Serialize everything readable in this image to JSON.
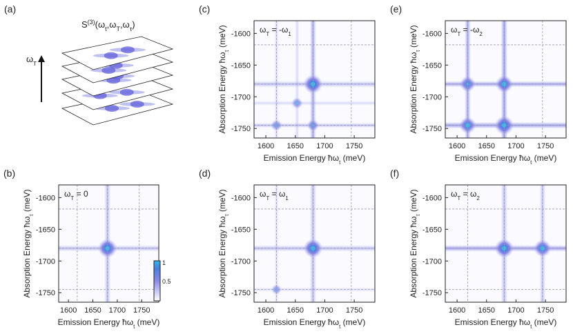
{
  "colors": {
    "peak": "#3ab8e8",
    "core": "#5a5ae0",
    "halo": "#b8b8f0",
    "grid": "#9a9ab4"
  },
  "panel_a": {
    "label": "(a)",
    "title_base": "S",
    "title_sup": "(3)",
    "title_args": "(ω",
    "title_arg1_sub": "t",
    "title_sep1": ",ω",
    "title_arg2_sub": "T",
    "title_sep2": ",ω",
    "title_arg3_sub": "τ",
    "title_end": ")",
    "axis_symbol": "ω",
    "axis_sub": "T"
  },
  "shared_axes": {
    "xlabel_text": "Emission Energy ħω",
    "xlabel_sub": "t",
    "xlabel_unit": " (meV)",
    "ylabel_text": "Absorption Energy ħω",
    "ylabel_sub": "τ",
    "ylabel_unit": " (meV)",
    "xticks": [
      "1600",
      "1650",
      "1700",
      "1750"
    ],
    "yticks": [
      "-1600",
      "-1650",
      "-1700",
      "-1750"
    ]
  },
  "chart_data": [
    {
      "id": "b",
      "type": "heatmap",
      "label": "(b)",
      "condition_prefix": "ω",
      "condition_sub": "T",
      "condition_rest": " = 0",
      "condition_suffix_sub": "",
      "xlim": [
        1580,
        1785
      ],
      "ylim": [
        -1765,
        -1580
      ],
      "ref_lines_x": [
        1618,
        1680,
        1745
      ],
      "ref_lines_y": [
        -1618,
        -1680,
        -1745
      ],
      "peaks": [
        {
          "x": 1680,
          "y": -1680,
          "amp": 1.0
        }
      ],
      "colorbar": {
        "ticks": [
          "1",
          "0.5"
        ],
        "range": [
          0,
          1
        ]
      }
    },
    {
      "id": "c",
      "type": "heatmap",
      "label": "(c)",
      "condition_prefix": "ω",
      "condition_sub": "T",
      "condition_rest": " = -ω",
      "condition_suffix_sub": "1",
      "xlim": [
        1580,
        1785
      ],
      "ylim": [
        -1765,
        -1580
      ],
      "ref_lines_x": [
        1618,
        1680,
        1745
      ],
      "ref_lines_y": [
        -1618,
        -1680,
        -1745
      ],
      "peaks": [
        {
          "x": 1680,
          "y": -1680,
          "amp": 1.0
        },
        {
          "x": 1680,
          "y": -1745,
          "amp": 0.35
        },
        {
          "x": 1618,
          "y": -1745,
          "amp": 0.3
        },
        {
          "x": 1653,
          "y": -1710,
          "amp": 0.3
        }
      ]
    },
    {
      "id": "d",
      "type": "heatmap",
      "label": "(d)",
      "condition_prefix": "ω",
      "condition_sub": "T",
      "condition_rest": " = ω",
      "condition_suffix_sub": "1",
      "xlim": [
        1580,
        1785
      ],
      "ylim": [
        -1765,
        -1580
      ],
      "ref_lines_x": [
        1618,
        1680,
        1745
      ],
      "ref_lines_y": [
        -1618,
        -1680,
        -1745
      ],
      "peaks": [
        {
          "x": 1680,
          "y": -1680,
          "amp": 1.0
        },
        {
          "x": 1618,
          "y": -1745,
          "amp": 0.2
        }
      ]
    },
    {
      "id": "e",
      "type": "heatmap",
      "label": "(e)",
      "condition_prefix": "ω",
      "condition_sub": "T",
      "condition_rest": " = -ω",
      "condition_suffix_sub": "2",
      "xlim": [
        1580,
        1785
      ],
      "ylim": [
        -1765,
        -1580
      ],
      "ref_lines_x": [
        1618,
        1680,
        1745
      ],
      "ref_lines_y": [
        -1618,
        -1680,
        -1745
      ],
      "peaks": [
        {
          "x": 1680,
          "y": -1680,
          "amp": 0.85
        },
        {
          "x": 1618,
          "y": -1680,
          "amp": 0.7
        },
        {
          "x": 1618,
          "y": -1745,
          "amp": 0.8
        },
        {
          "x": 1680,
          "y": -1745,
          "amp": 1.0
        }
      ]
    },
    {
      "id": "f",
      "type": "heatmap",
      "label": "(f)",
      "condition_prefix": "ω",
      "condition_sub": "T",
      "condition_rest": " = ω",
      "condition_suffix_sub": "2",
      "xlim": [
        1580,
        1785
      ],
      "ylim": [
        -1765,
        -1580
      ],
      "ref_lines_x": [
        1618,
        1680,
        1745
      ],
      "ref_lines_y": [
        -1618,
        -1680,
        -1745
      ],
      "peaks": [
        {
          "x": 1680,
          "y": -1680,
          "amp": 1.0
        },
        {
          "x": 1745,
          "y": -1680,
          "amp": 0.85
        }
      ]
    }
  ]
}
